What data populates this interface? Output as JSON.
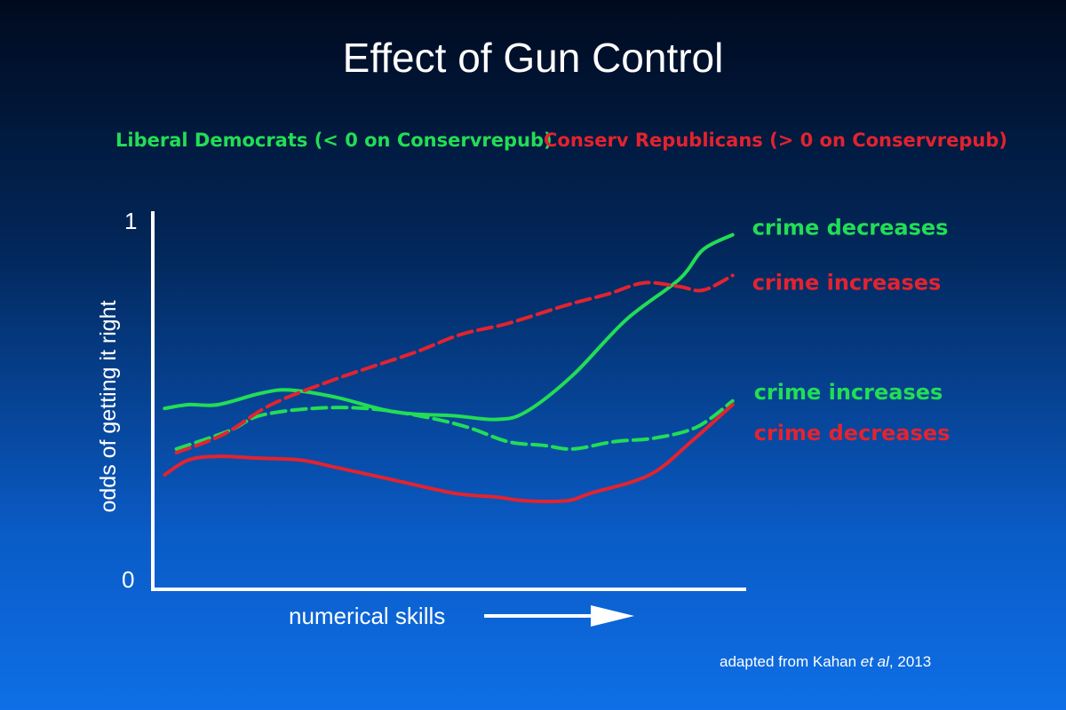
{
  "chart_data": {
    "type": "line",
    "title": "Effect of Gun Control",
    "legend": [
      {
        "label": "Liberal Democrats (< 0 on Conservrepub)",
        "color": "#22dd55"
      },
      {
        "label": "Conserv Republicans (> 0 on Conservrepub)",
        "color": "#e3232f"
      }
    ],
    "xlabel": "numerical skills",
    "ylabel": "odds of getting it right",
    "ylim": [
      0,
      1
    ],
    "xlim": [
      0,
      1
    ],
    "y_ticks": [
      "0",
      "1"
    ],
    "series": [
      {
        "name": "crime decreases",
        "group": "Liberal Democrats",
        "color": "#22dd55",
        "dashed": false,
        "points": [
          [
            0.02,
            0.49
          ],
          [
            0.06,
            0.5
          ],
          [
            0.11,
            0.5
          ],
          [
            0.18,
            0.53
          ],
          [
            0.23,
            0.54
          ],
          [
            0.31,
            0.52
          ],
          [
            0.41,
            0.48
          ],
          [
            0.51,
            0.47
          ],
          [
            0.58,
            0.46
          ],
          [
            0.63,
            0.48
          ],
          [
            0.71,
            0.58
          ],
          [
            0.8,
            0.73
          ],
          [
            0.89,
            0.84
          ],
          [
            0.93,
            0.92
          ],
          [
            0.98,
            0.96
          ]
        ]
      },
      {
        "name": "crime increases",
        "group": "Liberal Democrats",
        "color": "#22dd55",
        "dashed": true,
        "points": [
          [
            0.04,
            0.38
          ],
          [
            0.13,
            0.43
          ],
          [
            0.18,
            0.47
          ],
          [
            0.27,
            0.49
          ],
          [
            0.36,
            0.49
          ],
          [
            0.45,
            0.47
          ],
          [
            0.53,
            0.44
          ],
          [
            0.6,
            0.4
          ],
          [
            0.66,
            0.39
          ],
          [
            0.71,
            0.38
          ],
          [
            0.78,
            0.4
          ],
          [
            0.85,
            0.41
          ],
          [
            0.92,
            0.44
          ],
          [
            0.98,
            0.51
          ]
        ]
      },
      {
        "name": "crime increases",
        "group": "Conserv Republicans",
        "color": "#e3232f",
        "dashed": true,
        "points": [
          [
            0.04,
            0.37
          ],
          [
            0.12,
            0.42
          ],
          [
            0.2,
            0.5
          ],
          [
            0.31,
            0.57
          ],
          [
            0.44,
            0.64
          ],
          [
            0.52,
            0.69
          ],
          [
            0.6,
            0.72
          ],
          [
            0.7,
            0.77
          ],
          [
            0.77,
            0.8
          ],
          [
            0.83,
            0.83
          ],
          [
            0.89,
            0.82
          ],
          [
            0.93,
            0.81
          ],
          [
            0.98,
            0.85
          ]
        ]
      },
      {
        "name": "crime decreases",
        "group": "Conserv Republicans",
        "color": "#e3232f",
        "dashed": false,
        "points": [
          [
            0.02,
            0.31
          ],
          [
            0.06,
            0.35
          ],
          [
            0.11,
            0.36
          ],
          [
            0.18,
            0.355
          ],
          [
            0.25,
            0.35
          ],
          [
            0.31,
            0.33
          ],
          [
            0.41,
            0.295
          ],
          [
            0.51,
            0.26
          ],
          [
            0.58,
            0.25
          ],
          [
            0.63,
            0.24
          ],
          [
            0.7,
            0.24
          ],
          [
            0.74,
            0.26
          ],
          [
            0.84,
            0.31
          ],
          [
            0.91,
            0.4
          ],
          [
            0.98,
            0.5
          ]
        ]
      }
    ],
    "series_labels": [
      {
        "text": "crime decreases",
        "color": "#22dd55",
        "series_index": 0
      },
      {
        "text": "crime increases",
        "color": "#e3232f",
        "series_index": 2
      },
      {
        "text": "crime increases",
        "color": "#22dd55",
        "series_index": 1
      },
      {
        "text": "crime decreases",
        "color": "#e3232f",
        "series_index": 3
      }
    ],
    "source": "adapted from Kahan et al, 2013"
  },
  "credit": {
    "prefix": "adapted from Kahan ",
    "italic": "et al",
    "suffix": ", 2013"
  }
}
